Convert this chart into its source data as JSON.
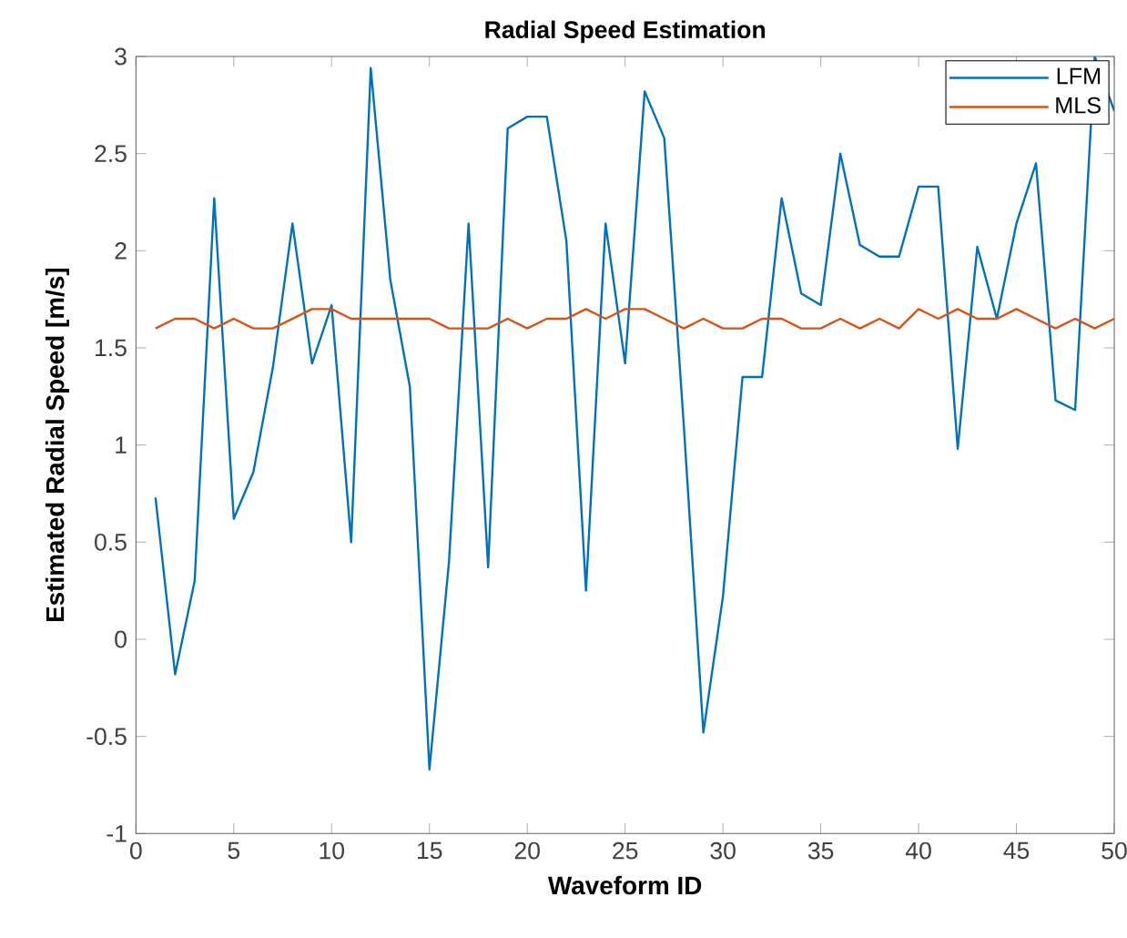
{
  "chart_data": {
    "type": "line",
    "title": "Radial Speed Estimation",
    "xlabel": "Waveform ID",
    "ylabel": "Estimated Radial Speed [m/s]",
    "x": [
      1,
      2,
      3,
      4,
      5,
      6,
      7,
      8,
      9,
      10,
      11,
      12,
      13,
      14,
      15,
      16,
      17,
      18,
      19,
      20,
      21,
      22,
      23,
      24,
      25,
      26,
      27,
      28,
      29,
      30,
      31,
      32,
      33,
      34,
      35,
      36,
      37,
      38,
      39,
      40,
      41,
      42,
      43,
      44,
      45,
      46,
      47,
      48,
      49,
      50
    ],
    "series": [
      {
        "name": "LFM",
        "color": "#0072bd",
        "values": [
          0.73,
          -0.18,
          0.3,
          2.27,
          0.62,
          0.86,
          1.4,
          2.14,
          1.42,
          1.72,
          0.5,
          2.94,
          1.85,
          1.3,
          -0.67,
          0.4,
          2.14,
          0.37,
          2.63,
          2.69,
          2.69,
          2.05,
          0.25,
          2.14,
          1.42,
          2.82,
          2.58,
          1.1,
          -0.48,
          0.22,
          1.35,
          1.35,
          2.27,
          1.78,
          1.72,
          2.5,
          2.03,
          1.97,
          1.97,
          2.33,
          2.33,
          0.98,
          2.02,
          1.65,
          2.14,
          2.45,
          1.23,
          1.18,
          3.0,
          2.72
        ]
      },
      {
        "name": "MLS",
        "color": "#d95319",
        "values": [
          1.6,
          1.65,
          1.65,
          1.6,
          1.65,
          1.6,
          1.6,
          1.65,
          1.7,
          1.7,
          1.65,
          1.65,
          1.65,
          1.65,
          1.65,
          1.6,
          1.6,
          1.6,
          1.65,
          1.6,
          1.65,
          1.65,
          1.7,
          1.65,
          1.7,
          1.7,
          1.65,
          1.6,
          1.65,
          1.6,
          1.6,
          1.65,
          1.65,
          1.6,
          1.6,
          1.65,
          1.6,
          1.65,
          1.6,
          1.7,
          1.65,
          1.7,
          1.65,
          1.65,
          1.7,
          1.65,
          1.6,
          1.65,
          1.6,
          1.65
        ]
      }
    ],
    "xlim": [
      0,
      50
    ],
    "xticks": [
      0,
      5,
      10,
      15,
      20,
      25,
      30,
      35,
      40,
      45,
      50
    ],
    "ylim": [
      -1,
      3
    ],
    "yticks": [
      -1,
      -0.5,
      0,
      0.5,
      1,
      1.5,
      2,
      2.5,
      3
    ],
    "grid": false,
    "legend": "top right",
    "marker": "none",
    "line_style": "solid"
  }
}
